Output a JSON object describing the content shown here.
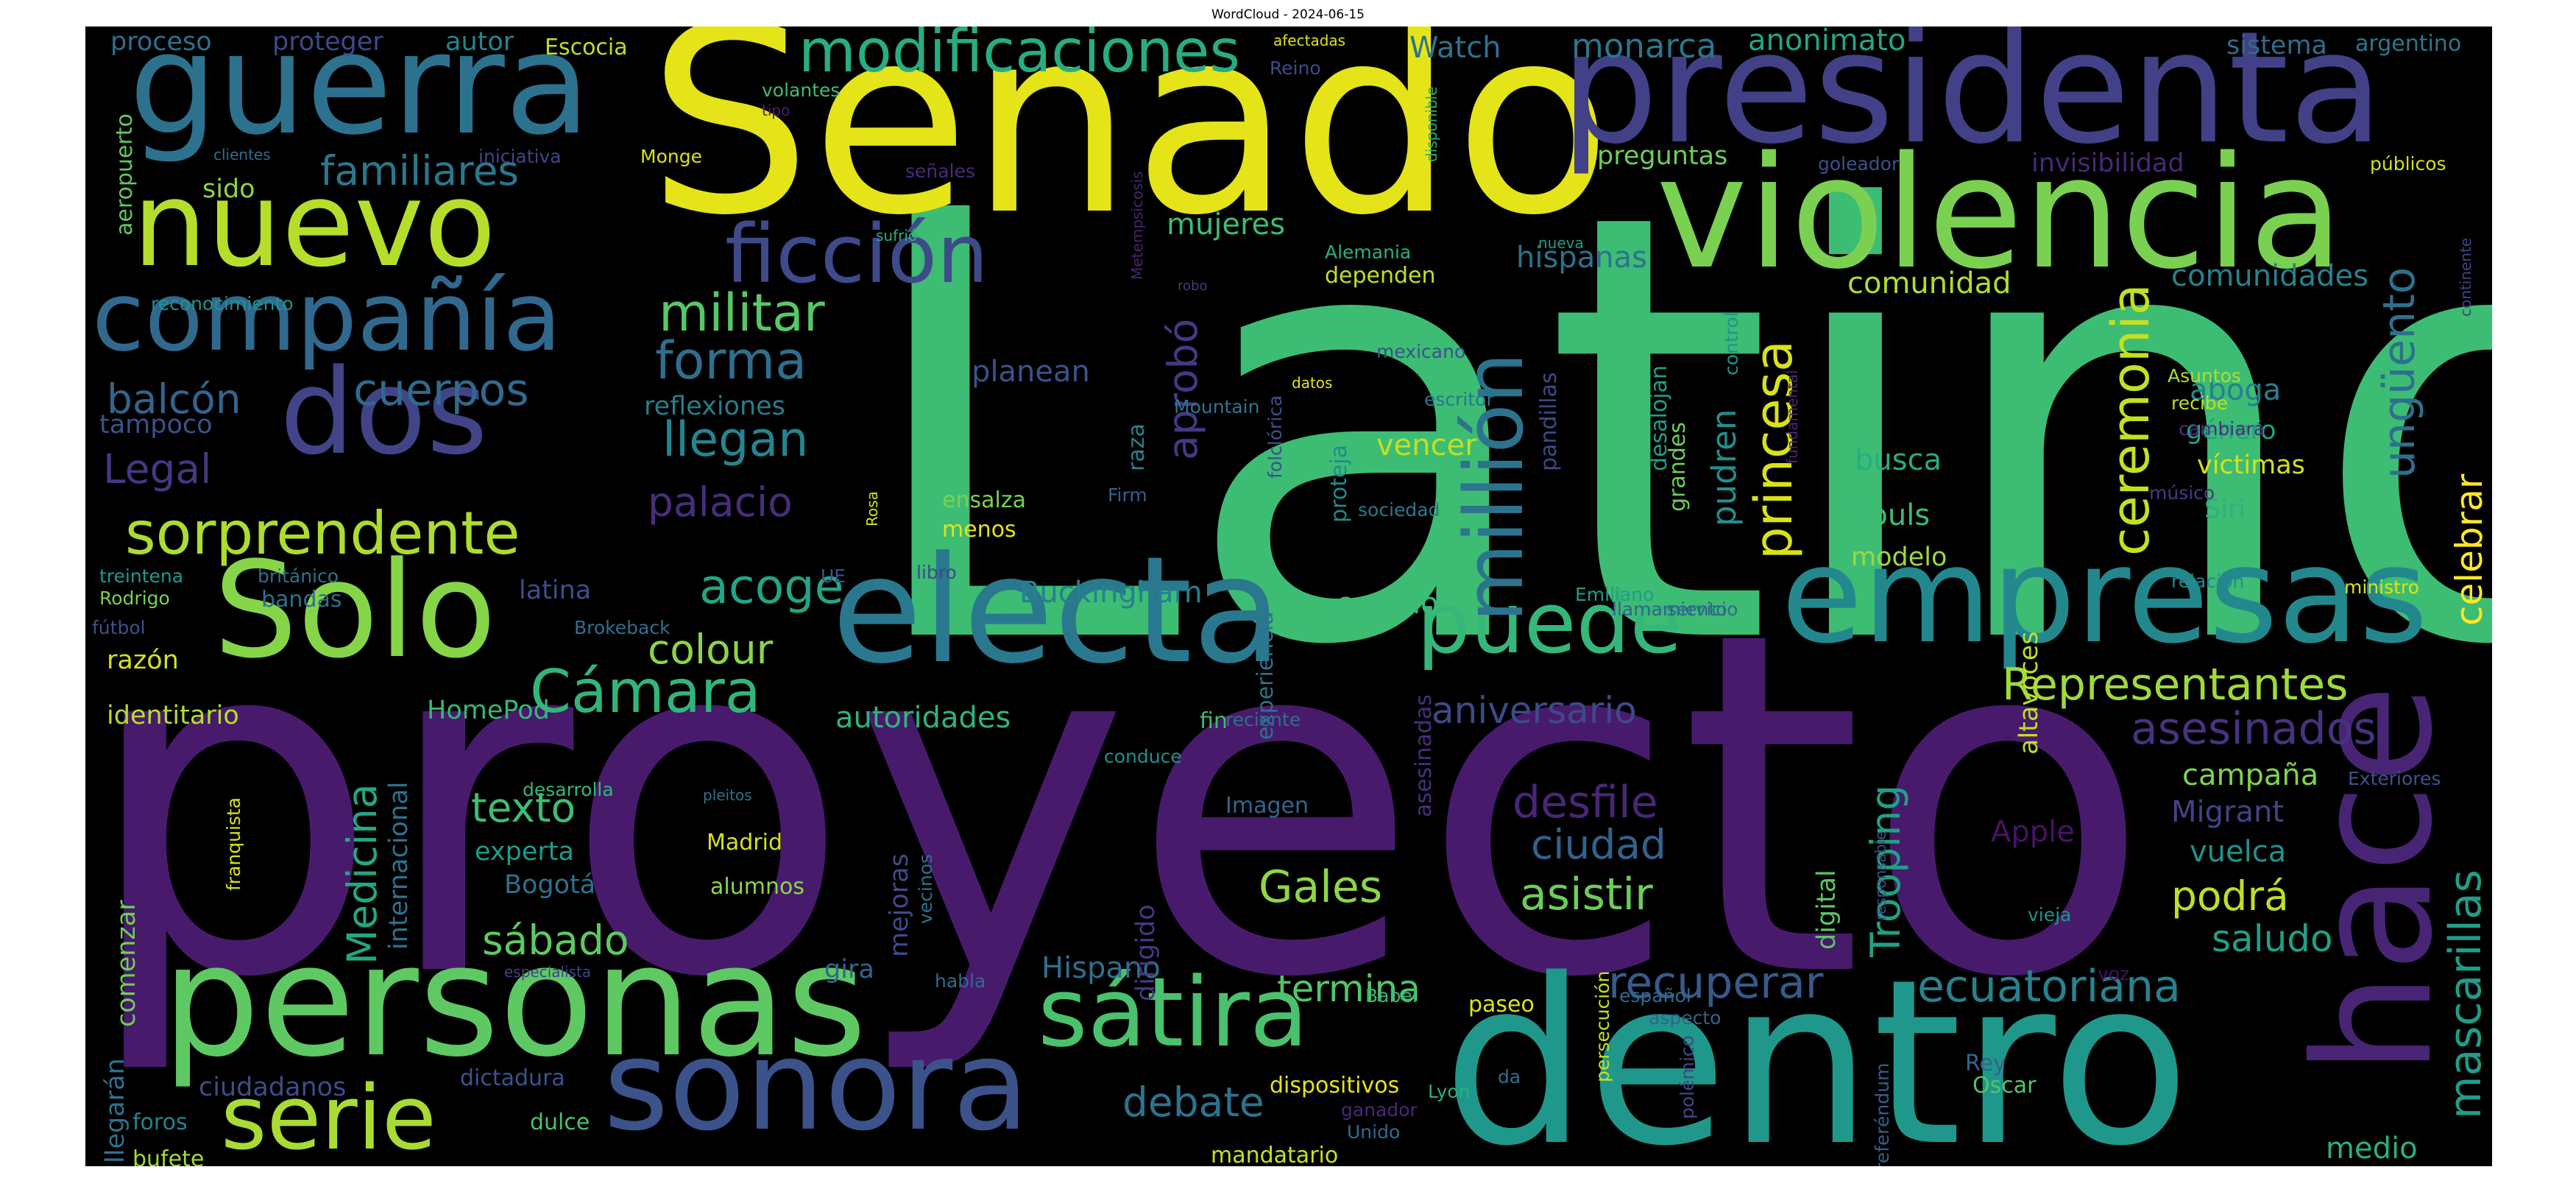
{
  "title": "WordCloud - 2024-06-15",
  "palette": {
    "background": "#000000",
    "page": "#ffffff"
  },
  "words": [
    {
      "text": "Latino",
      "color": "#3dbc74"
    },
    {
      "text": "proyecto",
      "color": "#481a6c"
    },
    {
      "text": "Senado",
      "color": "#e5e419"
    },
    {
      "text": "dentro",
      "color": "#1f988b"
    },
    {
      "text": "presidenta",
      "color": "#424086"
    },
    {
      "text": "violencia",
      "color": "#7ad151"
    },
    {
      "text": "electa",
      "color": "#2a788e"
    },
    {
      "text": "personas",
      "color": "#5ec962"
    },
    {
      "text": "hace",
      "color": "#482475"
    },
    {
      "text": "empresas",
      "color": "#23888e"
    },
    {
      "text": "guerra",
      "color": "#2c728e"
    },
    {
      "text": "Solo",
      "color": "#86d549"
    },
    {
      "text": "sonora",
      "color": "#3b528b"
    },
    {
      "text": "nuevo",
      "color": "#b5de2b"
    },
    {
      "text": "dos",
      "color": "#414487"
    },
    {
      "text": "compañía",
      "color": "#31688e"
    },
    {
      "text": "sátira",
      "color": "#4ac16d"
    },
    {
      "text": "serie",
      "color": "#a8db34"
    },
    {
      "text": "modificaciones",
      "color": "#27ad81"
    },
    {
      "text": "puede",
      "color": "#35b779"
    },
    {
      "text": "ficción",
      "color": "#3e4a89"
    },
    {
      "text": "millión",
      "color": "#2c738e"
    },
    {
      "text": "sorprendente",
      "color": "#addc30"
    },
    {
      "text": "Cámara",
      "color": "#31b57b"
    },
    {
      "text": "ceremonia",
      "color": "#c5e021"
    },
    {
      "text": "princesa",
      "color": "#d8e219"
    },
    {
      "text": "Representantes",
      "color": "#9fda3a"
    },
    {
      "text": "mascarillas",
      "color": "#1f9e89"
    },
    {
      "text": "ungüento",
      "color": "#2d708e"
    },
    {
      "text": "asesinados",
      "color": "#46337e"
    },
    {
      "text": "ecuatoriana",
      "color": "#26828e"
    },
    {
      "text": "recuperar",
      "color": "#375a8c"
    },
    {
      "text": "militar",
      "color": "#58c765"
    },
    {
      "text": "forma",
      "color": "#2e6e8e"
    },
    {
      "text": "llegan",
      "color": "#25858e"
    },
    {
      "text": "acoge",
      "color": "#21a685"
    },
    {
      "text": "Trooping",
      "color": "#1fa187"
    },
    {
      "text": "Medicina",
      "color": "#22a884"
    },
    {
      "text": "celebrar",
      "color": "#fde725"
    },
    {
      "text": "desfile",
      "color": "#482677"
    },
    {
      "text": "asistir",
      "color": "#6ccd5a"
    },
    {
      "text": "ciudad",
      "color": "#34618d"
    },
    {
      "text": "Gales",
      "color": "#8ed645"
    },
    {
      "text": "podrá",
      "color": "#bddf26"
    },
    {
      "text": "debate",
      "color": "#2c728e"
    },
    {
      "text": "termina",
      "color": "#52c569"
    },
    {
      "text": "sábado",
      "color": "#5ec962"
    },
    {
      "text": "texto",
      "color": "#3fbc73"
    },
    {
      "text": "familiares",
      "color": "#2a778e"
    },
    {
      "text": "cuerpos",
      "color": "#306a8e"
    },
    {
      "text": "balcón",
      "color": "#32648e"
    },
    {
      "text": "Legal",
      "color": "#453781"
    },
    {
      "text": "aprobó",
      "color": "#443983"
    },
    {
      "text": "colour",
      "color": "#8bd646"
    },
    {
      "text": "aniversario",
      "color": "#3e4989"
    },
    {
      "text": "palacio",
      "color": "#472e7c"
    },
    {
      "text": "pudren",
      "color": "#21918c"
    },
    {
      "text": "saludo",
      "color": "#1fa088"
    },
    {
      "text": "campaña",
      "color": "#7fd34e"
    },
    {
      "text": "Migrant",
      "color": "#414487"
    },
    {
      "text": "vuelca",
      "color": "#20928c"
    },
    {
      "text": "Apple",
      "color": "#471365"
    },
    {
      "text": "medio",
      "color": "#2ab07f"
    },
    {
      "text": "Buckingham",
      "color": "#26818e"
    },
    {
      "text": "autoridades",
      "color": "#2fb47c"
    },
    {
      "text": "corrido",
      "color": "#3bbb75"
    },
    {
      "text": "HomePod",
      "color": "#35b779"
    },
    {
      "text": "experta",
      "color": "#1e9b8a"
    },
    {
      "text": "Bogotá",
      "color": "#2d718e"
    },
    {
      "text": "Hispano",
      "color": "#2e6f8e"
    },
    {
      "text": "vencer",
      "color": "#c2df23"
    },
    {
      "text": "busca",
      "color": "#26ad81"
    },
    {
      "text": "Souls",
      "color": "#3dbc74"
    },
    {
      "text": "modelo",
      "color": "#9dd93b"
    },
    {
      "text": "Siri",
      "color": "#2db27d"
    },
    {
      "text": "víctimas",
      "color": "#d2e21b"
    },
    {
      "text": "género",
      "color": "#1fa287"
    },
    {
      "text": "aboga",
      "color": "#27808e"
    },
    {
      "text": "comunidad",
      "color": "#b0dd2f"
    },
    {
      "text": "comunidades",
      "color": "#26828e"
    },
    {
      "text": "hispanas",
      "color": "#2c728e"
    },
    {
      "text": "preguntas",
      "color": "#6ece58"
    },
    {
      "text": "monarca",
      "color": "#2b758e"
    },
    {
      "text": "anonimato",
      "color": "#21a685"
    },
    {
      "text": "Watch",
      "color": "#2c728e"
    },
    {
      "text": "invisibilidad",
      "color": "#482878"
    },
    {
      "text": "mujeres",
      "color": "#3dbc74"
    },
    {
      "text": "planean",
      "color": "#3b528b"
    },
    {
      "text": "reflexiones",
      "color": "#287c8e"
    },
    {
      "text": "identitario",
      "color": "#b5de2b"
    },
    {
      "text": "razón",
      "color": "#d5e21a"
    },
    {
      "text": "latina",
      "color": "#3d4e8a"
    },
    {
      "text": "menos",
      "color": "#e2e418"
    },
    {
      "text": "ensalza",
      "color": "#7ad151"
    },
    {
      "text": "comenzar",
      "color": "#6ece58"
    },
    {
      "text": "internacional",
      "color": "#2d718e"
    },
    {
      "text": "mejoras",
      "color": "#3e4a89"
    },
    {
      "text": "dirigido",
      "color": "#453882"
    },
    {
      "text": "digital",
      "color": "#5ac864"
    },
    {
      "text": "asesinadas",
      "color": "#46307e"
    },
    {
      "text": "experiencia",
      "color": "#2c738e"
    },
    {
      "text": "proteja",
      "color": "#238a8d"
    },
    {
      "text": "desalojan",
      "color": "#1f9f88"
    },
    {
      "text": "pandillas",
      "color": "#3e4989"
    },
    {
      "text": "grandes",
      "color": "#6ccd5a"
    },
    {
      "text": "altavoces",
      "color": "#bddf26"
    },
    {
      "text": "raza",
      "color": "#26828e"
    },
    {
      "text": "llegarán",
      "color": "#2c728e"
    },
    {
      "text": "ciudadanos",
      "color": "#3e4c8a"
    },
    {
      "text": "dictadura",
      "color": "#3b528b"
    },
    {
      "text": "dulce",
      "color": "#4ac16d"
    },
    {
      "text": "foros",
      "color": "#26828e"
    },
    {
      "text": "bufete",
      "color": "#9fda3a"
    },
    {
      "text": "gira",
      "color": "#31668e"
    },
    {
      "text": "Madrid",
      "color": "#d8e219"
    },
    {
      "text": "alumnos",
      "color": "#8bd646"
    },
    {
      "text": "Imagen",
      "color": "#31668e"
    },
    {
      "text": "español",
      "color": "#2f6c8e"
    },
    {
      "text": "aspecto",
      "color": "#33638d"
    },
    {
      "text": "Babel",
      "color": "#35b779"
    },
    {
      "text": "dispositivos",
      "color": "#e5e419"
    },
    {
      "text": "mandatario",
      "color": "#c8e020"
    },
    {
      "text": "paseo",
      "color": "#dde318"
    },
    {
      "text": "Oscar",
      "color": "#54c568"
    },
    {
      "text": "Rey",
      "color": "#33638d"
    },
    {
      "text": "vieja",
      "color": "#1f948c"
    },
    {
      "text": "voz",
      "color": "#471063"
    },
    {
      "text": "Exteriores",
      "color": "#3a548c"
    },
    {
      "text": "ministro",
      "color": "#dae319"
    },
    {
      "text": "relación",
      "color": "#238a8d"
    },
    {
      "text": "músico",
      "color": "#443983"
    },
    {
      "text": "recibe",
      "color": "#bddf26"
    },
    {
      "text": "Asuntos",
      "color": "#b0dd2f"
    },
    {
      "text": "cambiará",
      "color": "#46327e"
    },
    {
      "text": "escritor",
      "color": "#2b758e"
    },
    {
      "text": "mexicano",
      "color": "#3b528b"
    },
    {
      "text": "sociedad",
      "color": "#2a788e"
    },
    {
      "text": "Emiliano",
      "color": "#1e9d89"
    },
    {
      "text": "llamamiento",
      "color": "#33638d"
    },
    {
      "text": "servicio",
      "color": "#306a8e"
    },
    {
      "text": "fin",
      "color": "#3dbc74"
    },
    {
      "text": "reciente",
      "color": "#2e6f8e"
    },
    {
      "text": "conduce",
      "color": "#21908d"
    },
    {
      "text": "libro",
      "color": "#3e4989"
    },
    {
      "text": "UE",
      "color": "#3b528b"
    },
    {
      "text": "Rosa",
      "color": "#d2e21b"
    },
    {
      "text": "Firm",
      "color": "#34608d"
    },
    {
      "text": "Mountain",
      "color": "#2b758e"
    },
    {
      "text": "datos",
      "color": "#e5e419"
    },
    {
      "text": "Alemania",
      "color": "#2ab07f"
    },
    {
      "text": "dependen",
      "color": "#c2df23"
    },
    {
      "text": "nueva",
      "color": "#1f9e89"
    },
    {
      "text": "goleador",
      "color": "#3b528b"
    },
    {
      "text": "públicos",
      "color": "#d5e21a"
    },
    {
      "text": "sistema",
      "color": "#2f6c8e"
    },
    {
      "text": "argentino",
      "color": "#2a788e"
    },
    {
      "text": "Reino",
      "color": "#3e4989"
    },
    {
      "text": "afectadas",
      "color": "#dde318"
    },
    {
      "text": "señales",
      "color": "#472c7a"
    },
    {
      "text": "Metempsicosis",
      "color": "#482475"
    },
    {
      "text": "robo",
      "color": "#443a83"
    },
    {
      "text": "disponible",
      "color": "#2ab07f"
    },
    {
      "text": "Monge",
      "color": "#d8e219"
    },
    {
      "text": "iniciativa",
      "color": "#414487"
    },
    {
      "text": "clientes",
      "color": "#2e6e8e"
    },
    {
      "text": "tipo",
      "color": "#482071"
    },
    {
      "text": "volantes",
      "color": "#3fbc73"
    },
    {
      "text": "Escocia",
      "color": "#bddf26"
    },
    {
      "text": "autor",
      "color": "#24868e"
    },
    {
      "text": "proteger",
      "color": "#3e4989"
    },
    {
      "text": "proceso",
      "color": "#2d718e"
    },
    {
      "text": "aeropuerto",
      "color": "#5ec962"
    },
    {
      "text": "sido",
      "color": "#8bd646"
    },
    {
      "text": "reconocimiento",
      "color": "#1f948c"
    },
    {
      "text": "tampoco",
      "color": "#3b528b"
    },
    {
      "text": "treintena",
      "color": "#1e9b8a"
    },
    {
      "text": "británico",
      "color": "#2d718e"
    },
    {
      "text": "bandas",
      "color": "#2c728e"
    },
    {
      "text": "Rodrigo",
      "color": "#7ad151"
    },
    {
      "text": "fútbol",
      "color": "#3b528b"
    },
    {
      "text": "Brokeback",
      "color": "#2d718e"
    },
    {
      "text": "desarrolla",
      "color": "#35b779"
    },
    {
      "text": "pleitos",
      "color": "#2c728e"
    },
    {
      "text": "franquista",
      "color": "#d8e219"
    },
    {
      "text": "vecinos",
      "color": "#2c728e"
    },
    {
      "text": "habla",
      "color": "#2f6c8e"
    },
    {
      "text": "especialista",
      "color": "#414487"
    },
    {
      "text": "folclórica",
      "color": "#3b528b"
    },
    {
      "text": "sufrió",
      "color": "#2ab07f"
    },
    {
      "text": "control",
      "color": "#1f948c"
    },
    {
      "text": "fundamental",
      "color": "#482878"
    },
    {
      "text": "continente",
      "color": "#414487"
    },
    {
      "text": "responsable",
      "color": "#3b528b"
    },
    {
      "text": "persecución",
      "color": "#c5e021"
    },
    {
      "text": "polémico",
      "color": "#3e4989"
    },
    {
      "text": "referéndum",
      "color": "#34608d"
    },
    {
      "text": "Lyon",
      "color": "#2ab07f"
    },
    {
      "text": "da",
      "color": "#2e6e8e"
    },
    {
      "text": "ganador",
      "color": "#482878"
    },
    {
      "text": "Unido",
      "color": "#2f6c8e"
    }
  ]
}
